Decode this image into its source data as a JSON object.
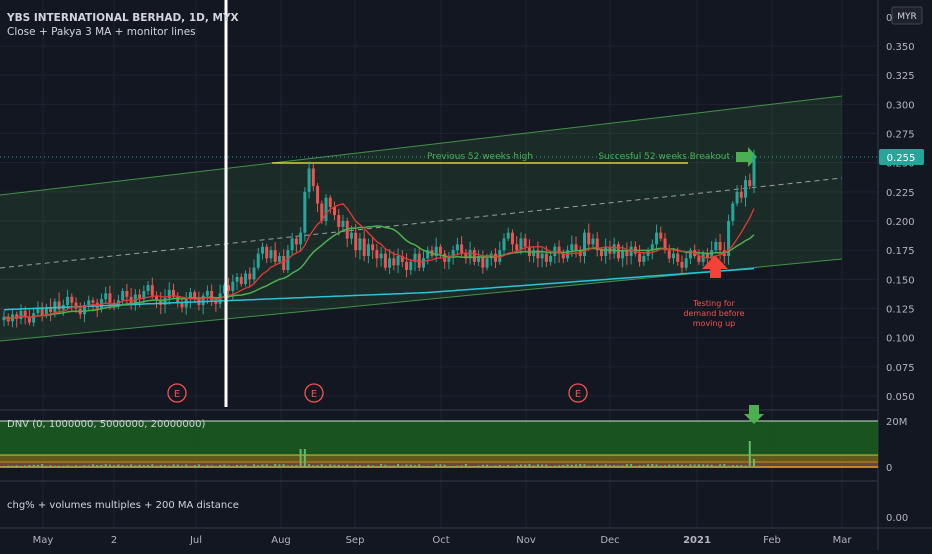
{
  "header": {
    "title": "YBS INTERNATIONAL BERHAD, 1D, MYX",
    "subtitle": "Close + Pakya 3 MA + monitor lines",
    "currency": "MYR"
  },
  "colors": {
    "background": "#131722",
    "up": "#26a69a",
    "down": "#ef5350",
    "ma_fast": "#e53935",
    "ma_mid": "#4caf50",
    "ma_slow": "#26c6da",
    "channel": "#4caf50",
    "price_badge": "#26a69a"
  },
  "chart_data": [
    {
      "type": "candlestick",
      "name": "price-panel",
      "x_ticks": [
        "May",
        "2",
        "Jul",
        "Aug",
        "Sep",
        "Oct",
        "Nov",
        "Dec",
        "2021",
        "Feb",
        "Mar"
      ],
      "y_ticks": [
        "0.350",
        "0.325",
        "0.300",
        "0.275",
        "0.250",
        "0.225",
        "0.200",
        "0.175",
        "0.150",
        "0.125",
        "0.100",
        "0.075",
        "0.050"
      ],
      "y_top_label": "0",
      "ylim": [
        0.04,
        0.375
      ],
      "last_price": "0.255",
      "closes": [
        0.118,
        0.114,
        0.12,
        0.116,
        0.123,
        0.118,
        0.113,
        0.121,
        0.125,
        0.119,
        0.126,
        0.122,
        0.131,
        0.124,
        0.128,
        0.135,
        0.13,
        0.125,
        0.12,
        0.128,
        0.132,
        0.13,
        0.125,
        0.133,
        0.138,
        0.13,
        0.127,
        0.132,
        0.14,
        0.135,
        0.128,
        0.137,
        0.133,
        0.14,
        0.145,
        0.136,
        0.132,
        0.128,
        0.134,
        0.141,
        0.135,
        0.13,
        0.126,
        0.133,
        0.139,
        0.134,
        0.128,
        0.136,
        0.14,
        0.132,
        0.129,
        0.138,
        0.145,
        0.14,
        0.148,
        0.152,
        0.146,
        0.155,
        0.15,
        0.16,
        0.172,
        0.178,
        0.168,
        0.175,
        0.165,
        0.17,
        0.158,
        0.175,
        0.185,
        0.18,
        0.19,
        0.225,
        0.245,
        0.23,
        0.215,
        0.2,
        0.22,
        0.212,
        0.205,
        0.195,
        0.2,
        0.185,
        0.19,
        0.175,
        0.185,
        0.17,
        0.18,
        0.175,
        0.168,
        0.172,
        0.16,
        0.168,
        0.162,
        0.17,
        0.165,
        0.158,
        0.165,
        0.172,
        0.16,
        0.168,
        0.175,
        0.17,
        0.178,
        0.172,
        0.165,
        0.17,
        0.175,
        0.18,
        0.172,
        0.168,
        0.175,
        0.165,
        0.17,
        0.16,
        0.168,
        0.172,
        0.165,
        0.175,
        0.185,
        0.19,
        0.18,
        0.175,
        0.185,
        0.178,
        0.17,
        0.175,
        0.168,
        0.172,
        0.165,
        0.17,
        0.178,
        0.172,
        0.168,
        0.175,
        0.18,
        0.175,
        0.17,
        0.19,
        0.18,
        0.185,
        0.175,
        0.17,
        0.178,
        0.172,
        0.18,
        0.168,
        0.175,
        0.17,
        0.178,
        0.172,
        0.165,
        0.17,
        0.175,
        0.18,
        0.19,
        0.185,
        0.175,
        0.168,
        0.172,
        0.165,
        0.16,
        0.168,
        0.175,
        0.17,
        0.165,
        0.172,
        0.168,
        0.175,
        0.182,
        0.175,
        0.17,
        0.2,
        0.215,
        0.225,
        0.22,
        0.235,
        0.23,
        0.255
      ],
      "series": [
        {
          "name": "MA fast"
        },
        {
          "name": "MA mid"
        },
        {
          "name": "MA slow"
        }
      ],
      "annotations": {
        "prev_high_label": "Previous 52 weeks high",
        "prev_high_value": 0.25,
        "breakout_label": "Succesful 52 weeks Breakout",
        "testing_label": [
          "Testing for",
          "demand before",
          "moving up"
        ],
        "earnings_marker": "E",
        "earnings_count": 3
      }
    },
    {
      "type": "bar",
      "name": "volume-panel",
      "label": "DNV (0, 1000000, 5000000, 20000000)",
      "y_ticks": [
        "20M",
        "0"
      ]
    },
    {
      "type": "line",
      "name": "chg-panel",
      "label": "chg% + volumes multiples + 200 MA distance",
      "y_ticks": [
        "0.00"
      ]
    }
  ]
}
